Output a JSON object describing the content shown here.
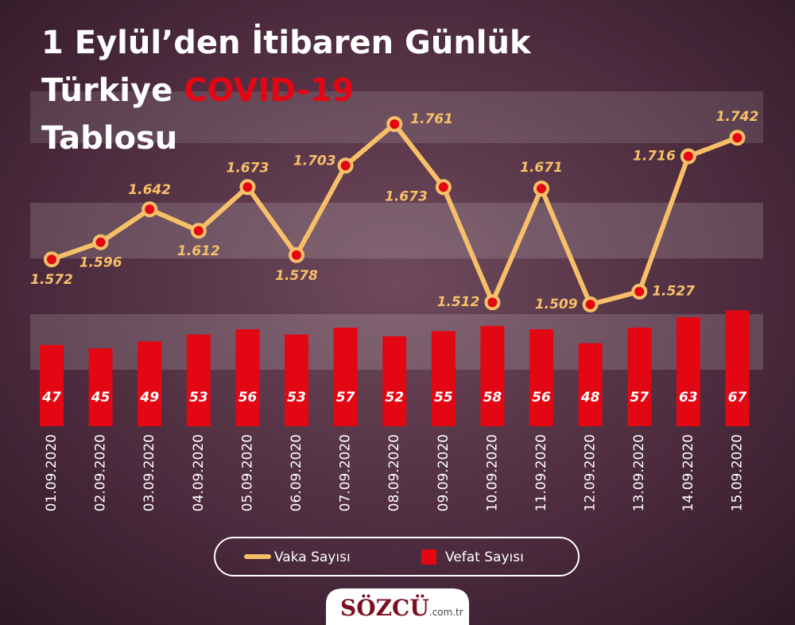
{
  "chart_data": {
    "type": "bar-line",
    "title": [
      "1 Eylül’den İtibaren Günlük",
      "Türkiye",
      "COVID-19",
      "Tablosu"
    ],
    "categories": [
      "01.09.2020",
      "02.09.2020",
      "03.09.2020",
      "04.09.2020",
      "05.09.2020",
      "06.09.2020",
      "07.09.2020",
      "08.09.2020",
      "09.09.2020",
      "10.09.2020",
      "11.09.2020",
      "12.09.2020",
      "13.09.2020",
      "14.09.2020",
      "15.09.2020"
    ],
    "series": [
      {
        "name": "Vaka Sayısı",
        "type": "line",
        "color": "#f7c068",
        "values": [
          1572,
          1596,
          1642,
          1612,
          1673,
          1578,
          1703,
          1761,
          1673,
          1512,
          1671,
          1509,
          1527,
          1716,
          1742
        ],
        "value_labels": [
          "1.572",
          "1.596",
          "1.642",
          "1.612",
          "1.673",
          "1.578",
          "1.703",
          "1.761",
          "1.673",
          "1.512",
          "1.671",
          "1.509",
          "1.527",
          "1.716",
          "1.742"
        ]
      },
      {
        "name": "Vefat Sayısı",
        "type": "bar",
        "color": "#e30613",
        "axis": "y2",
        "values": [
          47,
          45,
          49,
          53,
          56,
          53,
          57,
          52,
          55,
          58,
          56,
          48,
          57,
          63,
          67
        ]
      }
    ],
    "ylim": [
      1490,
      1790
    ],
    "y2lim": [
      0,
      80
    ],
    "logo": [
      "SÖZCÜ",
      ".com.tr"
    ]
  }
}
